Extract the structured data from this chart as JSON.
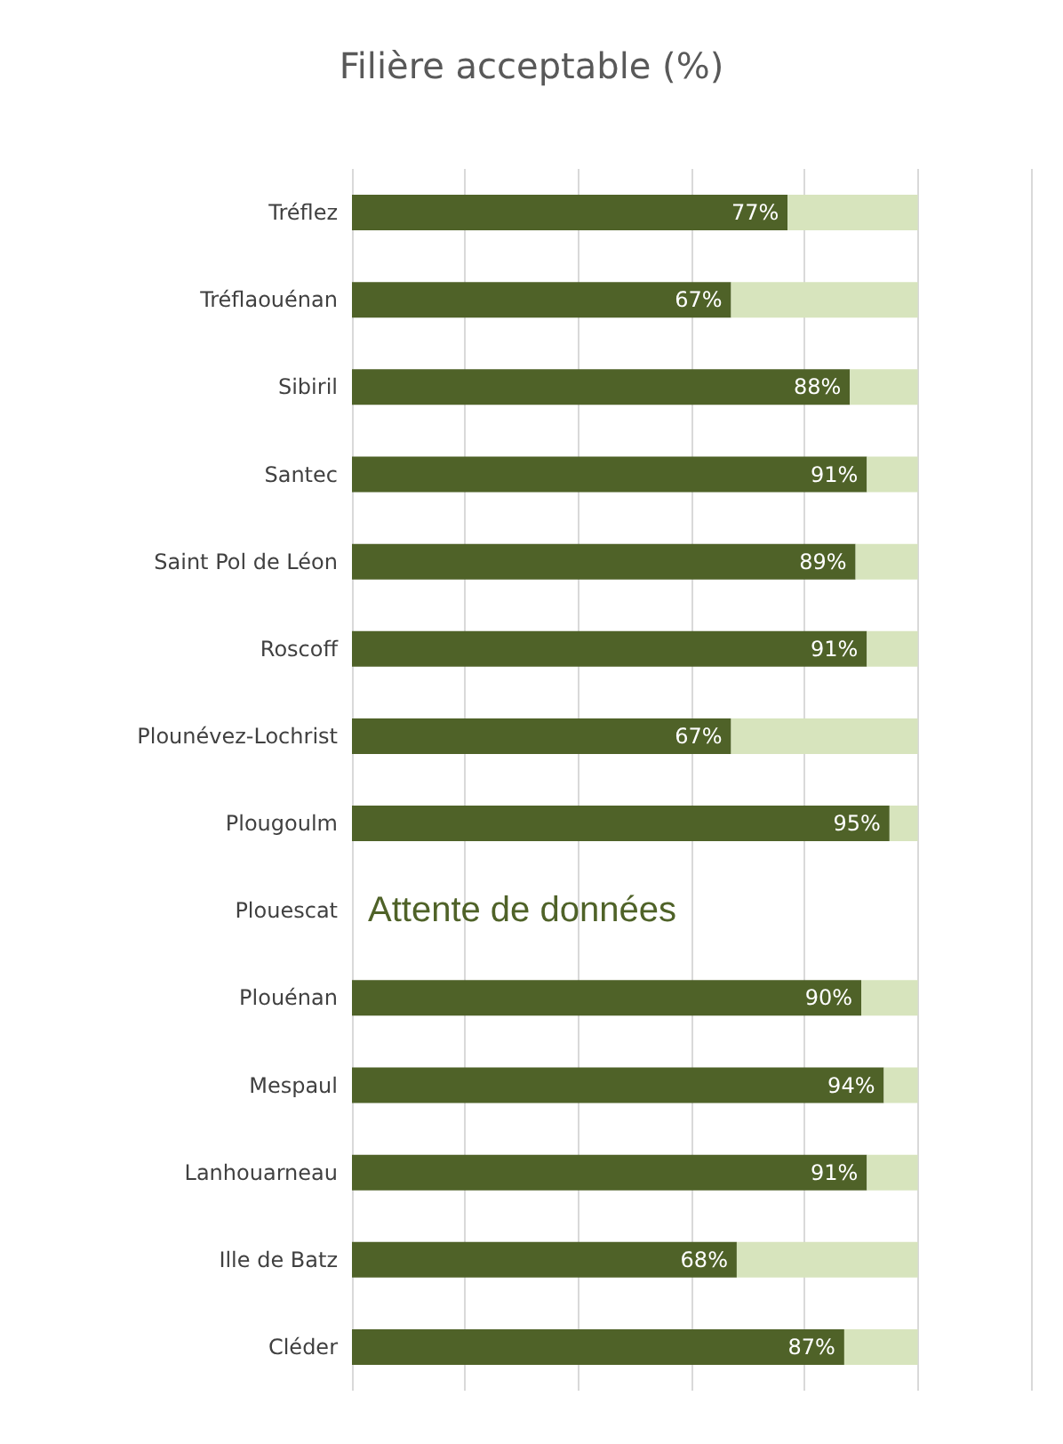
{
  "chart_data": {
    "type": "bar",
    "orientation": "horizontal",
    "stacked": true,
    "title": "Filière acceptable (%)",
    "categories": [
      "Tréflez",
      "Tréflaouénan",
      "Sibiril",
      "Santec",
      "Saint Pol de Léon",
      "Roscoff",
      "Plounévez-Lochrist",
      "Plougoulm",
      "Plouescat",
      "Plouénan",
      "Mespaul",
      "Lanhouarneau",
      "Ille de Batz",
      "Cléder"
    ],
    "series": [
      {
        "color": "#4f6228",
        "values": [
          77,
          67,
          88,
          91,
          89,
          91,
          67,
          95,
          null,
          90,
          94,
          91,
          68,
          87
        ],
        "value_labels": [
          "77%",
          "67%",
          "88%",
          "91%",
          "89%",
          "91%",
          "67%",
          "95%",
          null,
          "90%",
          "94%",
          "91%",
          "68%",
          "87%"
        ]
      },
      {
        "color": "#d7e4bd",
        "values": [
          23,
          33,
          12,
          9,
          11,
          9,
          33,
          5,
          null,
          10,
          6,
          9,
          32,
          13
        ]
      }
    ],
    "xlim": [
      0,
      120
    ],
    "xticks": [
      {
        "value": 0,
        "label": null
      },
      {
        "value": 20,
        "label": null
      },
      {
        "value": 40,
        "label": null
      },
      {
        "value": 60,
        "label": null
      },
      {
        "value": 80,
        "label": null
      },
      {
        "value": 100,
        "label": null
      },
      {
        "value": 120,
        "label": null
      }
    ],
    "grid": "x",
    "tick_labels": "y",
    "annotations": [
      "Attente de données"
    ]
  }
}
